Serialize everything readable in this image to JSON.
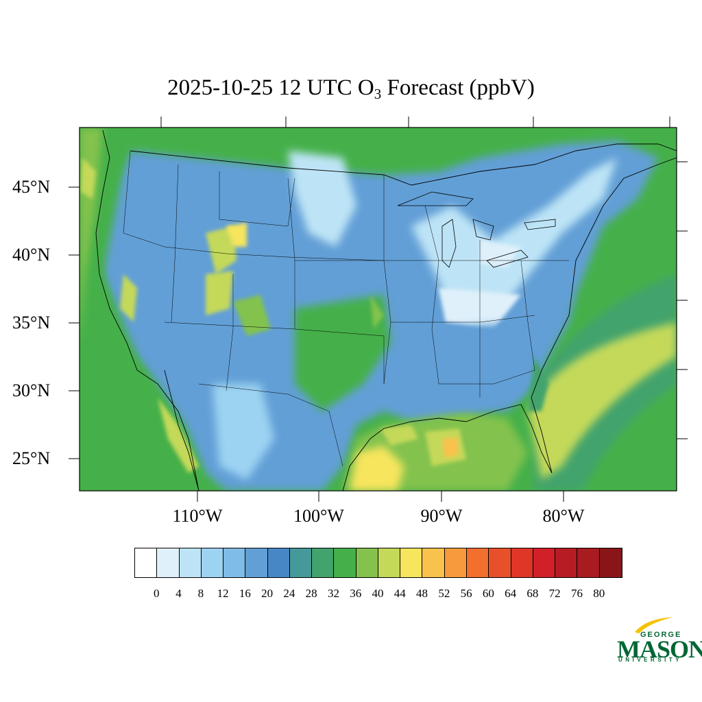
{
  "title": {
    "prefix": "2025-10-25 12 UTC O",
    "subscript": "3",
    "suffix": " Forecast (ppbV)"
  },
  "lat_labels": [
    "45°N",
    "40°N",
    "35°N",
    "30°N",
    "25°N"
  ],
  "lon_labels": [
    "110°W",
    "100°W",
    "90°W",
    "80°W"
  ],
  "colorbar": {
    "ticks": [
      "0",
      "4",
      "8",
      "12",
      "16",
      "20",
      "24",
      "28",
      "32",
      "36",
      "40",
      "44",
      "48",
      "52",
      "56",
      "60",
      "64",
      "68",
      "72",
      "76",
      "80"
    ],
    "colors": [
      "#ffffff",
      "#dff0fa",
      "#bde4f6",
      "#9cd3f2",
      "#80bde6",
      "#629fd6",
      "#4887c6",
      "#45999a",
      "#43a36d",
      "#45b04a",
      "#83c24d",
      "#c4d95a",
      "#f6e55d",
      "#f8c24c",
      "#f79a3d",
      "#f26f2e",
      "#e8502a",
      "#df3627",
      "#d12028",
      "#b61c24",
      "#a81b21",
      "#8a1519"
    ]
  },
  "logo": {
    "george": "GEORGE",
    "mason": "MASON",
    "university": "UNIVERSITY",
    "accent": "#f4c300",
    "brand": "#006633"
  },
  "map": {
    "domain": "Continental United States",
    "variable": "O3 forecast",
    "units": "ppbV",
    "dominant_colors": {
      "low_ozone_interior": "#629fd6",
      "moderate": "#45b04a",
      "high_gulf_west": "#f6e55d"
    }
  }
}
